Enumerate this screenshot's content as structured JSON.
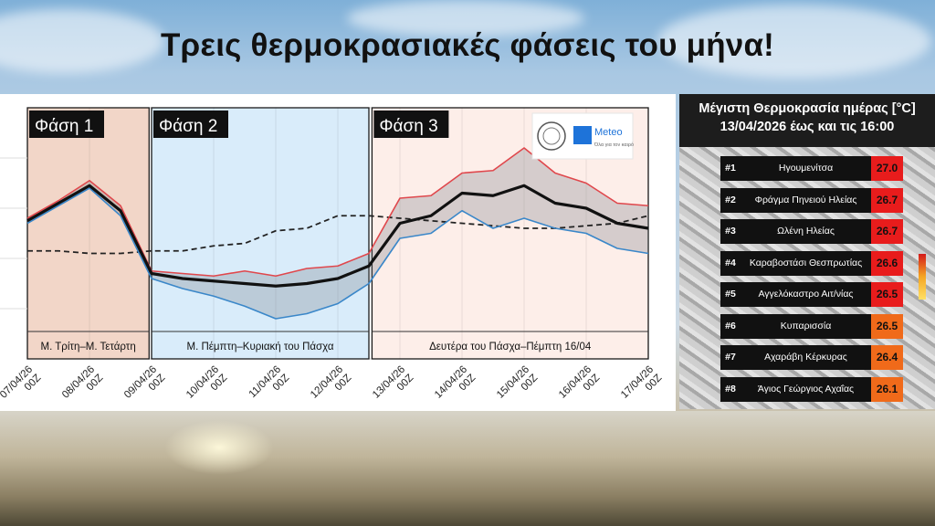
{
  "title": "Τρεις θερμοκρασιακές φάσεις του μήνα!",
  "phases": [
    {
      "label": "Φάση 1",
      "caption": "Μ. Τρίτη–Μ. Τετάρτη",
      "start_index": 0,
      "end_index": 1.96,
      "color": "#f2d6c8"
    },
    {
      "label": "Φάση 2",
      "caption": "Μ. Πέμπτη–Κυριακή του Πάσχα",
      "start_index": 2.0,
      "end_index": 5.5,
      "color": "#d9ecfa"
    },
    {
      "label": "Φάση 3",
      "caption": "Δευτέρα του Πάσχα–Πέμπτη 16/04",
      "start_index": 5.55,
      "end_index": 10.0,
      "color": "#fdeee9"
    }
  ],
  "logo": {
    "brand": "Meteo",
    "tagline": "Όλα για τον καιρό",
    "brand_color": "#1e73d9"
  },
  "chart_data": {
    "type": "line",
    "x": [
      "07/04/26 00Z",
      "07/04/26 12Z",
      "08/04/26 00Z",
      "08/04/26 12Z",
      "09/04/26 00Z",
      "09/04/26 12Z",
      "10/04/26 00Z",
      "10/04/26 12Z",
      "11/04/26 00Z",
      "11/04/26 12Z",
      "12/04/26 00Z",
      "12/04/26 12Z",
      "13/04/26 00Z",
      "13/04/26 12Z",
      "14/04/26 00Z",
      "14/04/26 12Z",
      "15/04/26 00Z",
      "15/04/26 12Z",
      "16/04/26 00Z",
      "16/04/26 12Z",
      "17/04/26 00Z"
    ],
    "tick_labels": [
      {
        "index": 0,
        "date": "07/04/26",
        "hour": "00Z"
      },
      {
        "index": 1,
        "date": "08/04/26",
        "hour": "00Z"
      },
      {
        "index": 2,
        "date": "09/04/26",
        "hour": "00Z"
      },
      {
        "index": 3,
        "date": "10/04/26",
        "hour": "00Z"
      },
      {
        "index": 4,
        "date": "11/04/26",
        "hour": "00Z"
      },
      {
        "index": 5,
        "date": "12/04/26",
        "hour": "00Z"
      },
      {
        "index": 6,
        "date": "13/04/26",
        "hour": "00Z"
      },
      {
        "index": 7,
        "date": "14/04/26",
        "hour": "00Z"
      },
      {
        "index": 8,
        "date": "15/04/26",
        "hour": "00Z"
      },
      {
        "index": 9,
        "date": "16/04/26",
        "hour": "00Z"
      },
      {
        "index": 10,
        "date": "17/04/26",
        "hour": "00Z"
      }
    ],
    "ylim": [
      0,
      100
    ],
    "grid": true,
    "series": [
      {
        "role": "upper",
        "color": "#e0474c",
        "points": [
          [
            0,
            56
          ],
          [
            0.5,
            63
          ],
          [
            1,
            71
          ],
          [
            1.5,
            61
          ],
          [
            2,
            35
          ],
          [
            2.5,
            34
          ],
          [
            3,
            33
          ],
          [
            3.5,
            35
          ],
          [
            4,
            33
          ],
          [
            4.5,
            36
          ],
          [
            5,
            37
          ],
          [
            5.5,
            42
          ],
          [
            6,
            64
          ],
          [
            6.5,
            65
          ],
          [
            7,
            74
          ],
          [
            7.5,
            75
          ],
          [
            8,
            84
          ],
          [
            8.5,
            74
          ],
          [
            9,
            70
          ],
          [
            9.5,
            62
          ],
          [
            10,
            61
          ]
        ]
      },
      {
        "role": "mean",
        "color": "#111111",
        "points": [
          [
            0,
            55
          ],
          [
            0.5,
            62
          ],
          [
            1,
            69
          ],
          [
            1.5,
            59
          ],
          [
            2,
            34
          ],
          [
            2.5,
            32
          ],
          [
            3,
            31
          ],
          [
            3.5,
            30
          ],
          [
            4,
            29
          ],
          [
            4.5,
            30
          ],
          [
            5,
            32
          ],
          [
            5.5,
            37
          ],
          [
            6,
            54
          ],
          [
            6.5,
            57
          ],
          [
            7,
            66
          ],
          [
            7.5,
            65
          ],
          [
            8,
            69
          ],
          [
            8.5,
            62
          ],
          [
            9,
            60
          ],
          [
            9.5,
            54
          ],
          [
            10,
            52
          ]
        ]
      },
      {
        "role": "lower",
        "color": "#3a87c9",
        "points": [
          [
            0,
            54
          ],
          [
            0.5,
            61
          ],
          [
            1,
            68
          ],
          [
            1.5,
            57
          ],
          [
            2,
            32
          ],
          [
            2.5,
            28
          ],
          [
            3,
            25
          ],
          [
            3.5,
            21
          ],
          [
            4,
            16
          ],
          [
            4.5,
            18
          ],
          [
            5,
            22
          ],
          [
            5.5,
            30
          ],
          [
            6,
            48
          ],
          [
            6.5,
            50
          ],
          [
            7,
            59
          ],
          [
            7.5,
            52
          ],
          [
            8,
            56
          ],
          [
            8.5,
            52
          ],
          [
            9,
            50
          ],
          [
            9.5,
            44
          ],
          [
            10,
            42
          ]
        ]
      },
      {
        "role": "climatology",
        "color": "#222222",
        "points": [
          [
            0,
            43
          ],
          [
            0.5,
            43
          ],
          [
            1,
            42
          ],
          [
            1.5,
            42
          ],
          [
            2,
            43
          ],
          [
            2.5,
            43
          ],
          [
            3,
            45
          ],
          [
            3.5,
            46
          ],
          [
            4,
            51
          ],
          [
            4.5,
            52
          ],
          [
            5,
            57
          ],
          [
            5.5,
            57
          ],
          [
            6,
            56
          ],
          [
            6.5,
            55
          ],
          [
            7,
            54
          ],
          [
            7.5,
            53
          ],
          [
            8,
            52
          ],
          [
            8.5,
            52
          ],
          [
            9,
            53
          ],
          [
            9.5,
            54
          ],
          [
            10,
            57
          ]
        ]
      }
    ]
  },
  "ranking": {
    "title_line1": "Μέγιστη Θερμοκρασία ημέρας [°C]",
    "title_line2": "13/04/2026 έως και τις 16:00",
    "rows": [
      {
        "rank": "#1",
        "name": "Ηγουμενίτσα",
        "value": "27.0"
      },
      {
        "rank": "#2",
        "name": "Φράγμα Πηνειού Ηλείας",
        "value": "26.7"
      },
      {
        "rank": "#3",
        "name": "Ωλένη Ηλείας",
        "value": "26.7"
      },
      {
        "rank": "#4",
        "name": "Καραβοστάσι Θεσπρωτίας",
        "value": "26.6"
      },
      {
        "rank": "#5",
        "name": "Αγγελόκαστρο Αιτ/νίας",
        "value": "26.5"
      },
      {
        "rank": "#6",
        "name": "Κυπαρισσία",
        "value": "26.5"
      },
      {
        "rank": "#7",
        "name": "Αχαράβη Κέρκυρας",
        "value": "26.4"
      },
      {
        "rank": "#8",
        "name": "Άγιος Γεώργιος Αχαΐας",
        "value": "26.1"
      }
    ]
  }
}
